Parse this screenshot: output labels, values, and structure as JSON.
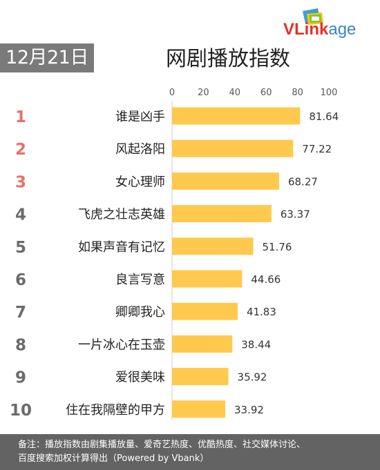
{
  "header": {
    "date": "12月21日",
    "title": "网剧播放指数",
    "logo": {
      "part1": "VL",
      "part2": "ink",
      "part3": "age"
    }
  },
  "footer": {
    "line1": "备注：播放指数由剧集播放量、爱奇艺热度、优酷热度、社交媒体讨论、",
    "line2": "百度搜索加权计算得出（Powered by Vbank）"
  },
  "colors": {
    "bar": "#ffc94d",
    "rank_top": "#e8706c",
    "rank_other": "#6b6b6b",
    "date_badge": "#7a7a7a",
    "footer": "#636363"
  },
  "chart_data": {
    "type": "bar",
    "orientation": "horizontal",
    "title": "网剧播放指数",
    "xlim": [
      0,
      100
    ],
    "ticks": [
      0,
      20,
      40,
      60,
      80,
      100
    ],
    "ranks": [
      1,
      2,
      3,
      4,
      5,
      6,
      7,
      8,
      9,
      10
    ],
    "categories": [
      "谁是凶手",
      "风起洛阳",
      "女心理师",
      "飞虎之壮志英雄",
      "如果声音有记忆",
      "良言写意",
      "卿卿我心",
      "一片冰心在玉壶",
      "爱很美味",
      "住在我隔壁的甲方"
    ],
    "values": [
      81.64,
      77.22,
      68.27,
      63.37,
      51.76,
      44.66,
      41.83,
      38.44,
      35.92,
      33.92
    ],
    "value_labels": [
      "81.64",
      "77.22",
      "68.27",
      "63.37",
      "51.76",
      "44.66",
      "41.83",
      "38.44",
      "35.92",
      "33.92"
    ]
  }
}
